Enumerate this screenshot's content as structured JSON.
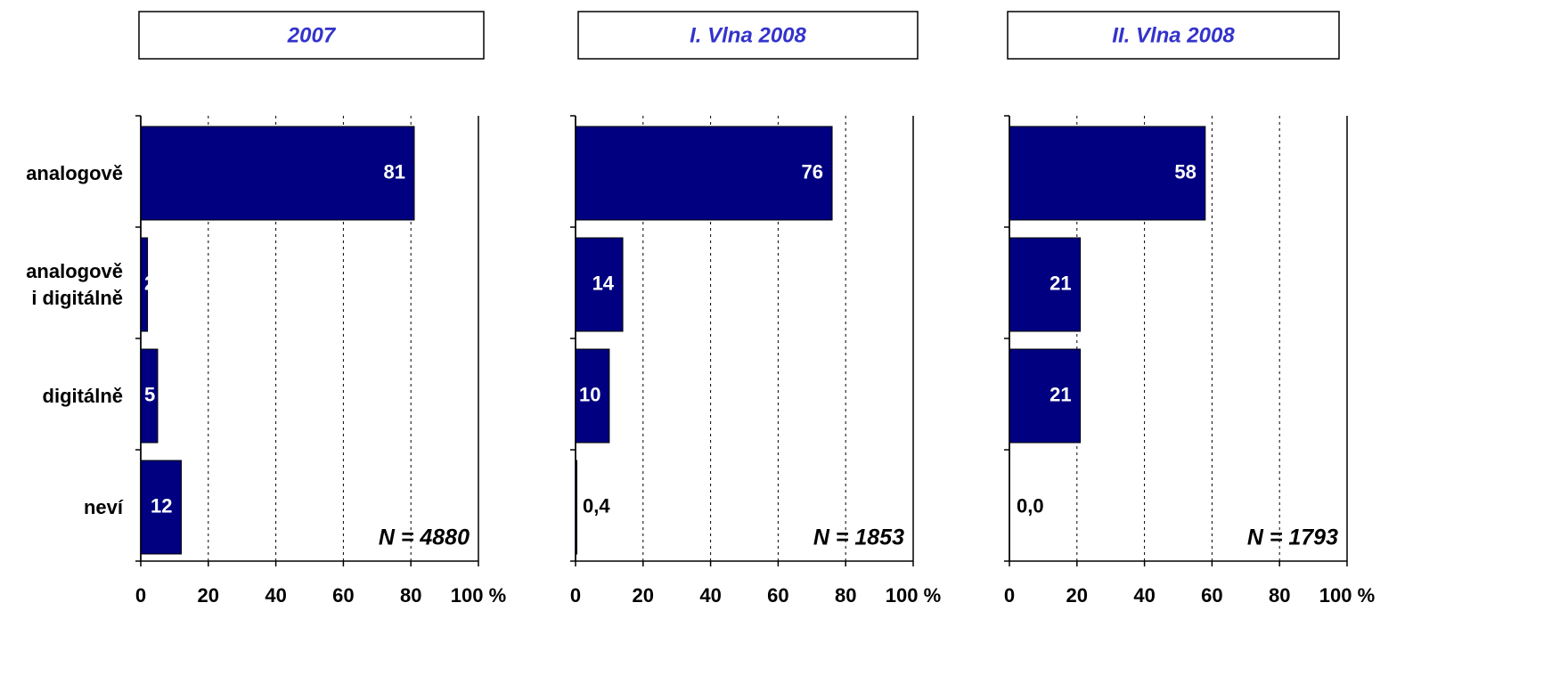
{
  "chart_data": [
    {
      "type": "barh",
      "title": "2007",
      "categories": [
        "analogově",
        "analogově\ni digitálně",
        "digitálně",
        "neví"
      ],
      "values": [
        81,
        2,
        5,
        12
      ],
      "color": "#000080",
      "xlim": [
        0,
        100
      ],
      "xticks": [
        0,
        20,
        40,
        60,
        80,
        {
          "value": 100,
          "label": "100 %"
        }
      ],
      "grid": true,
      "annotation": "N = 4880"
    },
    {
      "type": "barh",
      "title": "I. Vlna 2008",
      "categories": [
        null,
        null,
        null,
        null
      ],
      "values": [
        76,
        14,
        10,
        0.4
      ],
      "value_labels": [
        "76",
        "14",
        "10",
        "0,4"
      ],
      "color": "#000080",
      "xlim": [
        0,
        100
      ],
      "xticks": [
        0,
        20,
        40,
        60,
        80,
        {
          "value": 100,
          "label": "100 %"
        }
      ],
      "grid": true,
      "annotation": "N = 1853"
    },
    {
      "type": "barh",
      "title": "II. Vlna 2008",
      "categories": [
        null,
        null,
        null,
        null
      ],
      "values": [
        58,
        21,
        21,
        0
      ],
      "value_labels": [
        "58",
        "21",
        "21",
        "0,0"
      ],
      "color": "#000080",
      "xlim": [
        0,
        100
      ],
      "xticks": [
        0,
        20,
        40,
        60,
        80,
        {
          "value": 100,
          "label": "100 %"
        }
      ],
      "grid": true,
      "annotation": "N = 1793"
    }
  ]
}
